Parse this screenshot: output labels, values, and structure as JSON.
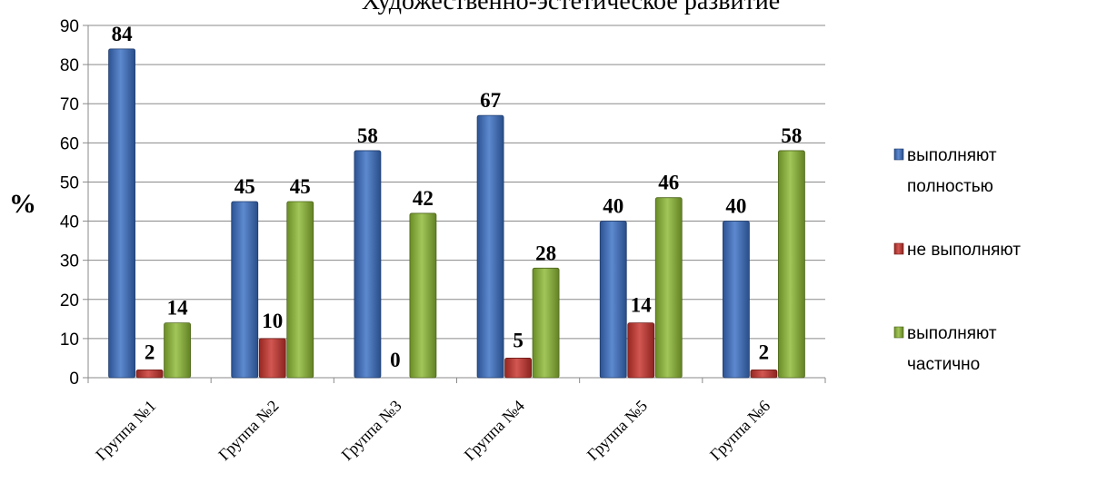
{
  "chart_data": {
    "type": "bar",
    "title": "Художественно-эстетическое развитие",
    "ylabel": "%",
    "xlabel": "",
    "ylim": [
      0,
      90
    ],
    "yticks": [
      0,
      10,
      20,
      30,
      40,
      50,
      60,
      70,
      80,
      90
    ],
    "grid": true,
    "legend_position": "right",
    "categories": [
      "Группа №1",
      "Группа №2",
      "Группа №3",
      "Группа №4",
      "Группа №5",
      "Группа №6"
    ],
    "series": [
      {
        "name": "выполняют полностью",
        "legend_lines": [
          "выполняют",
          "полностью"
        ],
        "color": "#3a6fc4",
        "values": [
          84,
          45,
          58,
          67,
          40,
          40
        ]
      },
      {
        "name": "не выполняют",
        "legend_lines": [
          "не выполняют"
        ],
        "color": "#c8322c",
        "values": [
          2,
          10,
          0,
          5,
          14,
          2
        ]
      },
      {
        "name": "выполняют частично",
        "legend_lines": [
          "выполняют",
          "частично"
        ],
        "color": "#8dba34",
        "values": [
          14,
          45,
          42,
          28,
          46,
          58
        ]
      }
    ]
  }
}
